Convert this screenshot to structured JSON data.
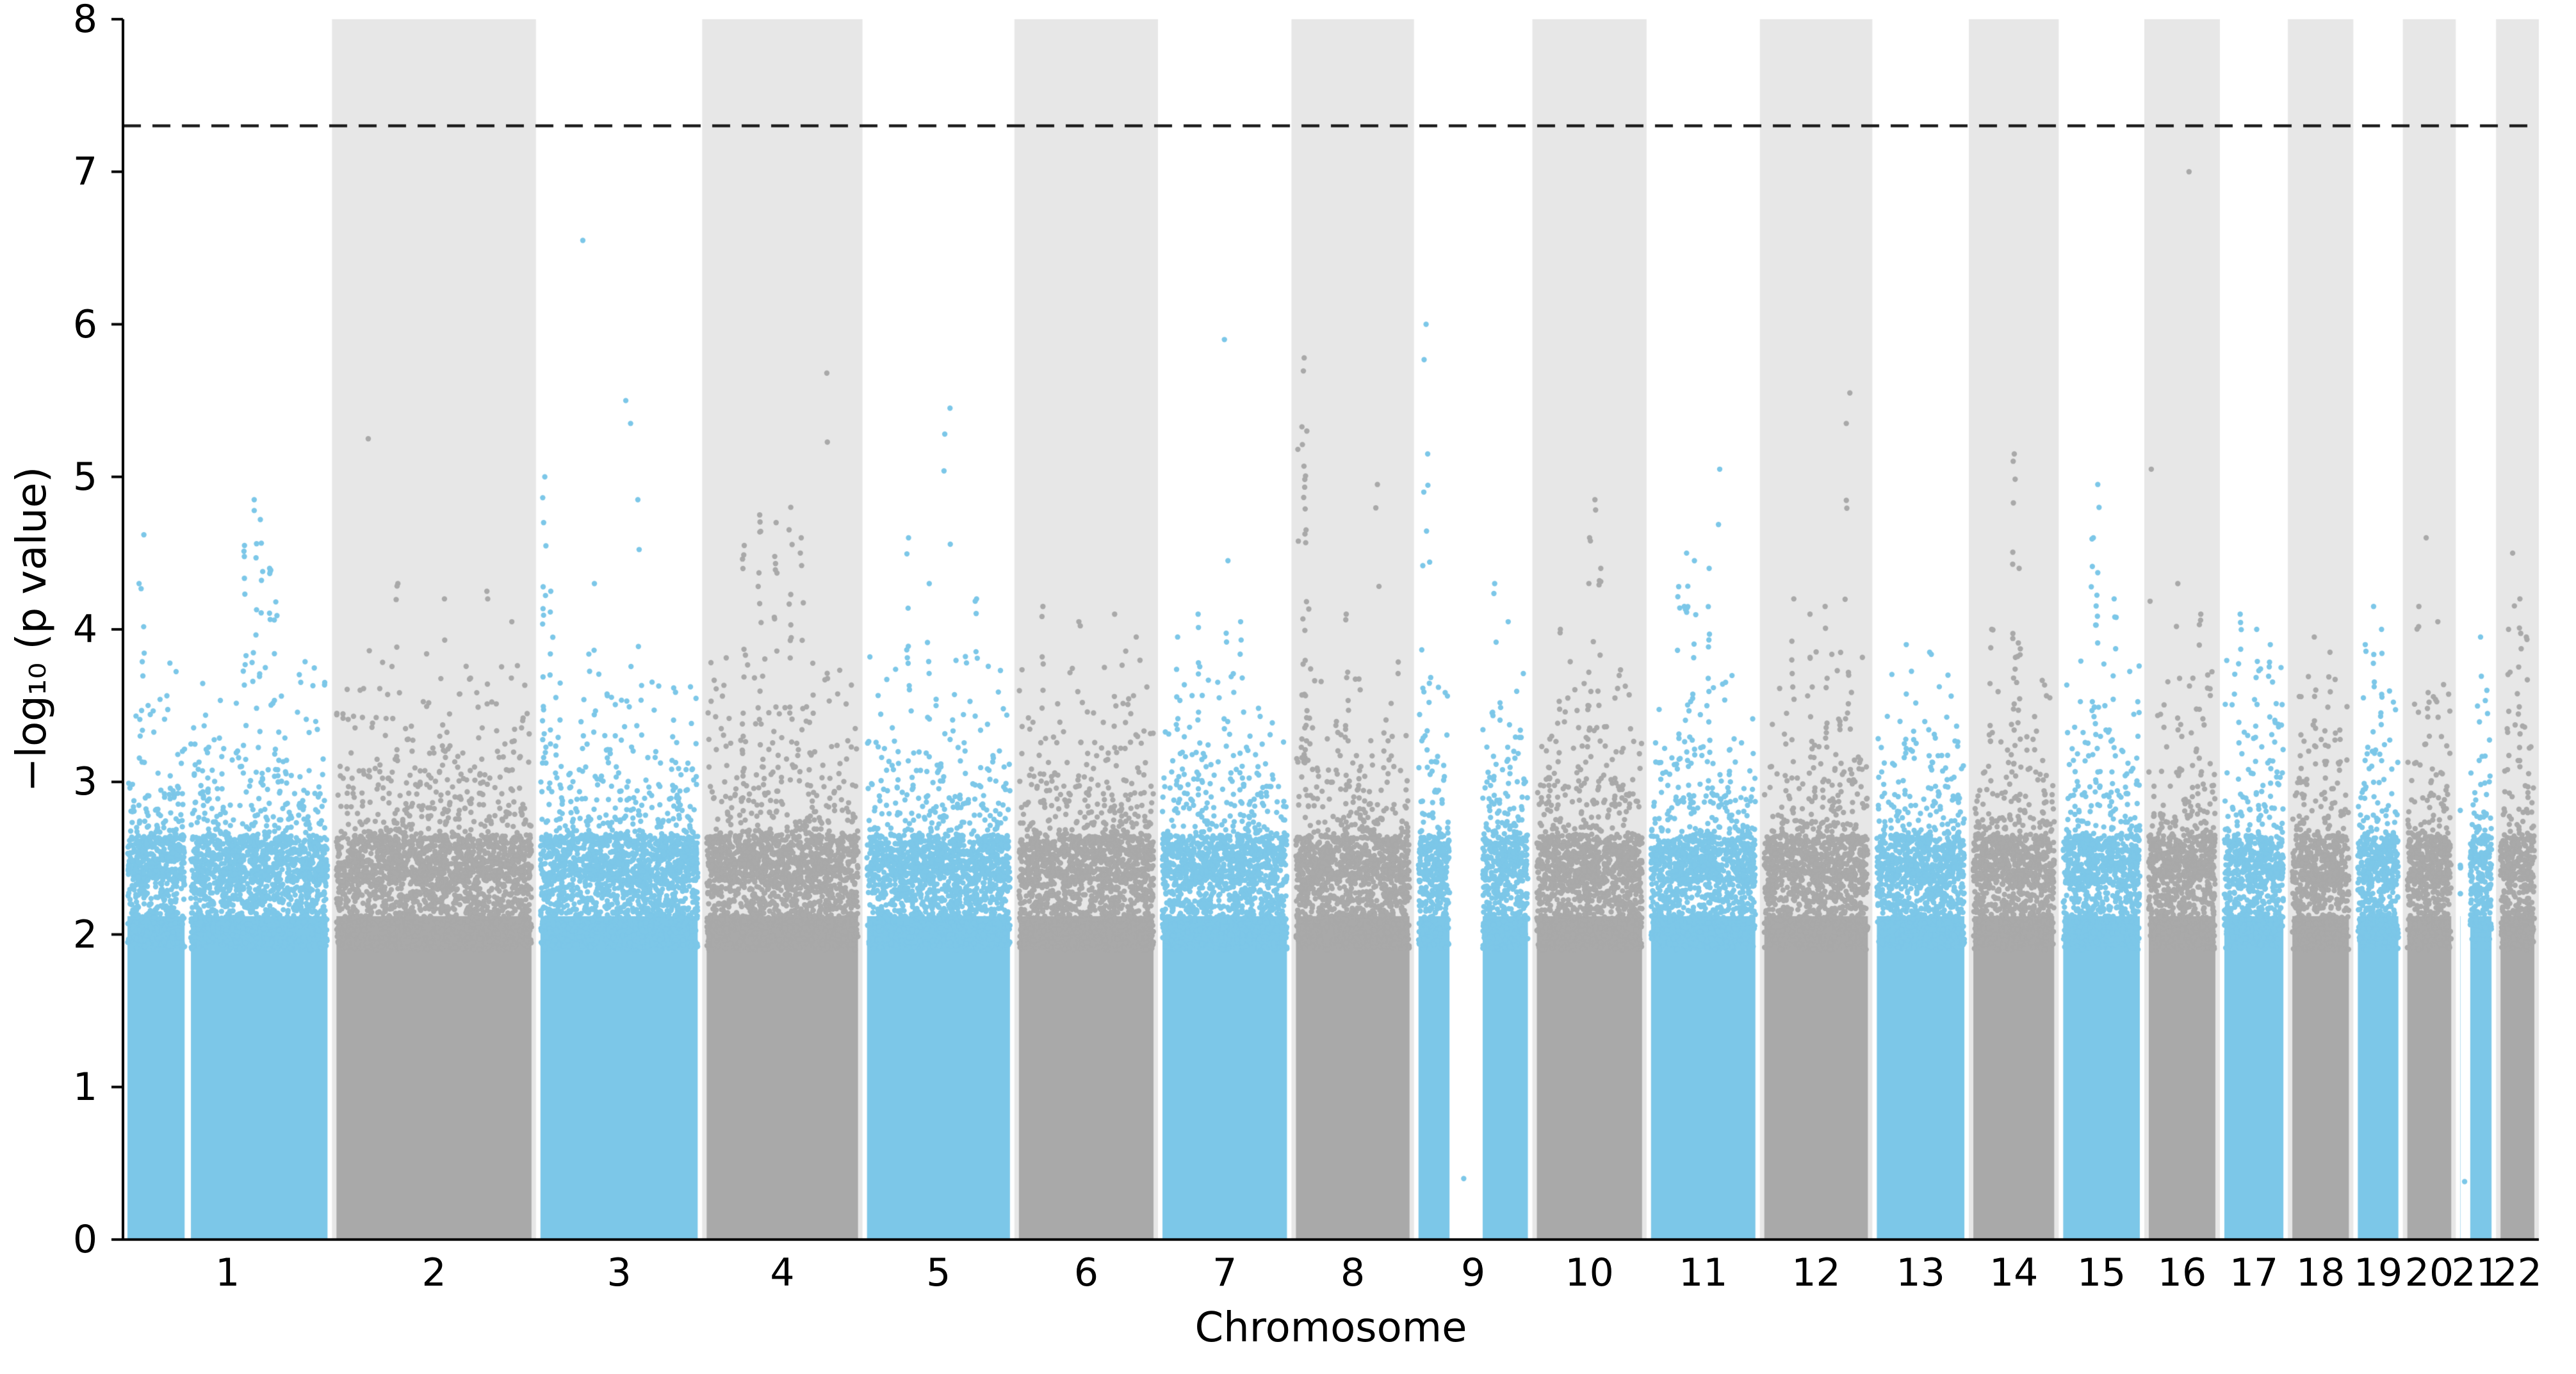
{
  "chart_data": {
    "type": "scatter",
    "subtype": "manhattan_gwas",
    "title": "",
    "xlabel": "Chromosome",
    "ylabel": "−log₁₀ (p value)",
    "ylim": [
      0,
      8
    ],
    "yticks": [
      0,
      1,
      2,
      3,
      4,
      5,
      6,
      7,
      8
    ],
    "grid": false,
    "legend": "none",
    "significance_threshold": 7.301,
    "significance_line_style": "dashed",
    "colors": {
      "odd": "#7CC7E8",
      "even": "#A9A9A9",
      "band": "#E7E7E7",
      "significance_line": "#1A1A1A",
      "axis": "#000000",
      "background": "#FFFFFF"
    },
    "chromosomes": [
      {
        "label": "1",
        "length_mb": 249,
        "color_group": "odd",
        "shaded": false,
        "max_background": 3.9,
        "gaps": [
          [
            0.295,
            0.325
          ]
        ],
        "isolated": [],
        "peaks": [
          {
            "pos": 0.1,
            "v": 4.62,
            "n": 3
          },
          {
            "pos": 0.08,
            "v": 4.3,
            "n": 4
          },
          {
            "pos": 0.58,
            "v": 4.55,
            "n": 10
          },
          {
            "pos": 0.63,
            "v": 4.85,
            "n": 9
          },
          {
            "pos": 0.66,
            "v": 4.72,
            "n": 8
          },
          {
            "pos": 0.7,
            "v": 4.4,
            "n": 7
          },
          {
            "pos": 0.73,
            "v": 4.18,
            "n": 6
          }
        ]
      },
      {
        "label": "2",
        "length_mb": 243,
        "color_group": "even",
        "shaded": true,
        "max_background": 3.85,
        "gaps": [],
        "isolated": [],
        "peaks": [
          {
            "pos": 0.18,
            "v": 5.25,
            "n": 2
          },
          {
            "pos": 0.32,
            "v": 4.3,
            "n": 4
          },
          {
            "pos": 0.55,
            "v": 4.2,
            "n": 3
          },
          {
            "pos": 0.76,
            "v": 4.25,
            "n": 3
          },
          {
            "pos": 0.88,
            "v": 4.05,
            "n": 3
          }
        ]
      },
      {
        "label": "3",
        "length_mb": 198,
        "color_group": "odd",
        "shaded": false,
        "max_background": 3.85,
        "gaps": [],
        "isolated": [],
        "peaks": [
          {
            "pos": 0.28,
            "v": 6.55,
            "n": 1
          },
          {
            "pos": 0.05,
            "v": 5.0,
            "n": 16
          },
          {
            "pos": 0.09,
            "v": 4.25,
            "n": 7
          },
          {
            "pos": 0.54,
            "v": 5.5,
            "n": 3
          },
          {
            "pos": 0.57,
            "v": 5.35,
            "n": 4
          },
          {
            "pos": 0.61,
            "v": 4.85,
            "n": 3
          },
          {
            "pos": 0.35,
            "v": 4.3,
            "n": 5
          }
        ]
      },
      {
        "label": "4",
        "length_mb": 191,
        "color_group": "even",
        "shaded": true,
        "max_background": 3.9,
        "gaps": [],
        "isolated": [],
        "peaks": [
          {
            "pos": 0.78,
            "v": 5.68,
            "n": 2
          },
          {
            "pos": 0.26,
            "v": 4.55,
            "n": 9
          },
          {
            "pos": 0.36,
            "v": 4.75,
            "n": 11
          },
          {
            "pos": 0.46,
            "v": 4.7,
            "n": 9
          },
          {
            "pos": 0.55,
            "v": 4.8,
            "n": 11
          },
          {
            "pos": 0.62,
            "v": 4.6,
            "n": 7
          }
        ]
      },
      {
        "label": "5",
        "length_mb": 181,
        "color_group": "odd",
        "shaded": false,
        "max_background": 3.85,
        "gaps": [],
        "isolated": [],
        "peaks": [
          {
            "pos": 0.58,
            "v": 5.45,
            "n": 3
          },
          {
            "pos": 0.54,
            "v": 5.28,
            "n": 3
          },
          {
            "pos": 0.3,
            "v": 4.6,
            "n": 8
          },
          {
            "pos": 0.44,
            "v": 4.3,
            "n": 6
          },
          {
            "pos": 0.75,
            "v": 4.2,
            "n": 5
          }
        ]
      },
      {
        "label": "6",
        "length_mb": 171,
        "color_group": "even",
        "shaded": true,
        "max_background": 3.9,
        "gaps": [],
        "isolated": [],
        "peaks": [
          {
            "pos": 0.2,
            "v": 4.15,
            "n": 6
          },
          {
            "pos": 0.45,
            "v": 4.05,
            "n": 6
          },
          {
            "pos": 0.7,
            "v": 4.1,
            "n": 5
          },
          {
            "pos": 0.85,
            "v": 3.95,
            "n": 4
          }
        ]
      },
      {
        "label": "7",
        "length_mb": 159,
        "color_group": "odd",
        "shaded": false,
        "max_background": 3.85,
        "gaps": [],
        "isolated": [],
        "peaks": [
          {
            "pos": 0.5,
            "v": 5.9,
            "n": 1
          },
          {
            "pos": 0.52,
            "v": 4.45,
            "n": 4
          },
          {
            "pos": 0.3,
            "v": 4.1,
            "n": 6
          },
          {
            "pos": 0.62,
            "v": 4.05,
            "n": 5
          },
          {
            "pos": 0.15,
            "v": 3.95,
            "n": 5
          }
        ]
      },
      {
        "label": "8",
        "length_mb": 146,
        "color_group": "even",
        "shaded": true,
        "max_background": 3.85,
        "gaps": [],
        "isolated": [],
        "peaks": [
          {
            "pos": 0.1,
            "v": 5.78,
            "n": 20
          },
          {
            "pos": 0.13,
            "v": 5.3,
            "n": 9
          },
          {
            "pos": 0.05,
            "v": 5.18,
            "n": 3
          },
          {
            "pos": 0.7,
            "v": 4.95,
            "n": 3
          },
          {
            "pos": 0.45,
            "v": 4.1,
            "n": 6
          }
        ]
      },
      {
        "label": "9",
        "length_mb": 141,
        "color_group": "odd",
        "shaded": false,
        "max_background": 3.8,
        "gaps": [
          [
            0.3,
            0.58
          ]
        ],
        "isolated": [
          {
            "pos": 0.42,
            "v": 0.4
          }
        ],
        "peaks": [
          {
            "pos": 0.1,
            "v": 6.0,
            "n": 2
          },
          {
            "pos": 0.12,
            "v": 5.15,
            "n": 7
          },
          {
            "pos": 0.08,
            "v": 4.9,
            "n": 6
          },
          {
            "pos": 0.68,
            "v": 4.3,
            "n": 5
          },
          {
            "pos": 0.8,
            "v": 4.05,
            "n": 4
          }
        ]
      },
      {
        "label": "10",
        "length_mb": 136,
        "color_group": "even",
        "shaded": true,
        "max_background": 3.8,
        "gaps": [],
        "isolated": [],
        "peaks": [
          {
            "pos": 0.55,
            "v": 4.85,
            "n": 3
          },
          {
            "pos": 0.5,
            "v": 4.6,
            "n": 9
          },
          {
            "pos": 0.6,
            "v": 4.4,
            "n": 7
          },
          {
            "pos": 0.25,
            "v": 4.0,
            "n": 5
          }
        ]
      },
      {
        "label": "11",
        "length_mb": 135,
        "color_group": "odd",
        "shaded": false,
        "max_background": 3.85,
        "gaps": [],
        "isolated": [],
        "peaks": [
          {
            "pos": 0.65,
            "v": 5.05,
            "n": 2
          },
          {
            "pos": 0.35,
            "v": 4.5,
            "n": 11
          },
          {
            "pos": 0.42,
            "v": 4.45,
            "n": 9
          },
          {
            "pos": 0.55,
            "v": 4.4,
            "n": 8
          },
          {
            "pos": 0.28,
            "v": 4.28,
            "n": 7
          }
        ]
      },
      {
        "label": "12",
        "length_mb": 134,
        "color_group": "even",
        "shaded": true,
        "max_background": 3.9,
        "gaps": [],
        "isolated": [],
        "peaks": [
          {
            "pos": 0.8,
            "v": 5.55,
            "n": 3
          },
          {
            "pos": 0.77,
            "v": 5.35,
            "n": 4
          },
          {
            "pos": 0.3,
            "v": 4.2,
            "n": 7
          },
          {
            "pos": 0.45,
            "v": 4.1,
            "n": 6
          },
          {
            "pos": 0.58,
            "v": 4.15,
            "n": 6
          }
        ]
      },
      {
        "label": "13",
        "length_mb": 115,
        "color_group": "odd",
        "shaded": false,
        "max_background": 3.75,
        "gaps": [],
        "isolated": [],
        "peaks": [
          {
            "pos": 0.35,
            "v": 3.9,
            "n": 6
          },
          {
            "pos": 0.6,
            "v": 3.85,
            "n": 5
          },
          {
            "pos": 0.78,
            "v": 3.7,
            "n": 4
          }
        ]
      },
      {
        "label": "14",
        "length_mb": 107,
        "color_group": "even",
        "shaded": true,
        "max_background": 3.8,
        "gaps": [],
        "isolated": [],
        "peaks": [
          {
            "pos": 0.5,
            "v": 5.15,
            "n": 14
          },
          {
            "pos": 0.56,
            "v": 4.4,
            "n": 6
          },
          {
            "pos": 0.25,
            "v": 4.0,
            "n": 4
          }
        ]
      },
      {
        "label": "15",
        "length_mb": 102,
        "color_group": "odd",
        "shaded": false,
        "max_background": 3.8,
        "gaps": [],
        "isolated": [],
        "peaks": [
          {
            "pos": 0.45,
            "v": 4.95,
            "n": 12
          },
          {
            "pos": 0.4,
            "v": 4.6,
            "n": 7
          },
          {
            "pos": 0.65,
            "v": 4.2,
            "n": 5
          }
        ]
      },
      {
        "label": "16",
        "length_mb": 90,
        "color_group": "even",
        "shaded": true,
        "max_background": 3.75,
        "gaps": [],
        "isolated": [],
        "peaks": [
          {
            "pos": 0.6,
            "v": 7.0,
            "n": 1
          },
          {
            "pos": 0.1,
            "v": 5.05,
            "n": 2
          },
          {
            "pos": 0.45,
            "v": 4.3,
            "n": 5
          },
          {
            "pos": 0.75,
            "v": 4.1,
            "n": 4
          }
        ]
      },
      {
        "label": "17",
        "length_mb": 81,
        "color_group": "odd",
        "shaded": false,
        "max_background": 3.8,
        "gaps": [],
        "isolated": [],
        "peaks": [
          {
            "pos": 0.3,
            "v": 4.1,
            "n": 6
          },
          {
            "pos": 0.55,
            "v": 4.0,
            "n": 5
          },
          {
            "pos": 0.75,
            "v": 3.9,
            "n": 4
          }
        ]
      },
      {
        "label": "18",
        "length_mb": 78,
        "color_group": "even",
        "shaded": true,
        "max_background": 3.75,
        "gaps": [],
        "isolated": [],
        "peaks": [
          {
            "pos": 0.4,
            "v": 3.95,
            "n": 5
          },
          {
            "pos": 0.65,
            "v": 3.85,
            "n": 4
          }
        ]
      },
      {
        "label": "19",
        "length_mb": 59,
        "color_group": "odd",
        "shaded": false,
        "max_background": 3.8,
        "gaps": [],
        "isolated": [],
        "peaks": [
          {
            "pos": 0.4,
            "v": 4.15,
            "n": 7
          },
          {
            "pos": 0.58,
            "v": 4.0,
            "n": 6
          },
          {
            "pos": 0.25,
            "v": 3.9,
            "n": 5
          }
        ]
      },
      {
        "label": "20",
        "length_mb": 63,
        "color_group": "even",
        "shaded": true,
        "max_background": 3.8,
        "gaps": [],
        "isolated": [],
        "peaks": [
          {
            "pos": 0.45,
            "v": 4.6,
            "n": 2
          },
          {
            "pos": 0.3,
            "v": 4.15,
            "n": 5
          },
          {
            "pos": 0.65,
            "v": 4.05,
            "n": 4
          }
        ]
      },
      {
        "label": "21",
        "length_mb": 48,
        "color_group": "odd",
        "shaded": false,
        "max_background": 3.55,
        "gaps": [
          [
            0.12,
            0.36
          ]
        ],
        "isolated": [
          {
            "pos": 0.22,
            "v": 0.38
          }
        ],
        "peaks": [
          {
            "pos": 0.6,
            "v": 3.95,
            "n": 5
          },
          {
            "pos": 0.78,
            "v": 3.6,
            "n": 3
          }
        ]
      },
      {
        "label": "22",
        "length_mb": 51,
        "color_group": "even",
        "shaded": true,
        "max_background": 3.7,
        "gaps": [],
        "isolated": [],
        "peaks": [
          {
            "pos": 0.4,
            "v": 4.5,
            "n": 2
          },
          {
            "pos": 0.55,
            "v": 4.2,
            "n": 7
          },
          {
            "pos": 0.3,
            "v": 4.0,
            "n": 6
          },
          {
            "pos": 0.7,
            "v": 3.95,
            "n": 5
          }
        ]
      }
    ]
  }
}
